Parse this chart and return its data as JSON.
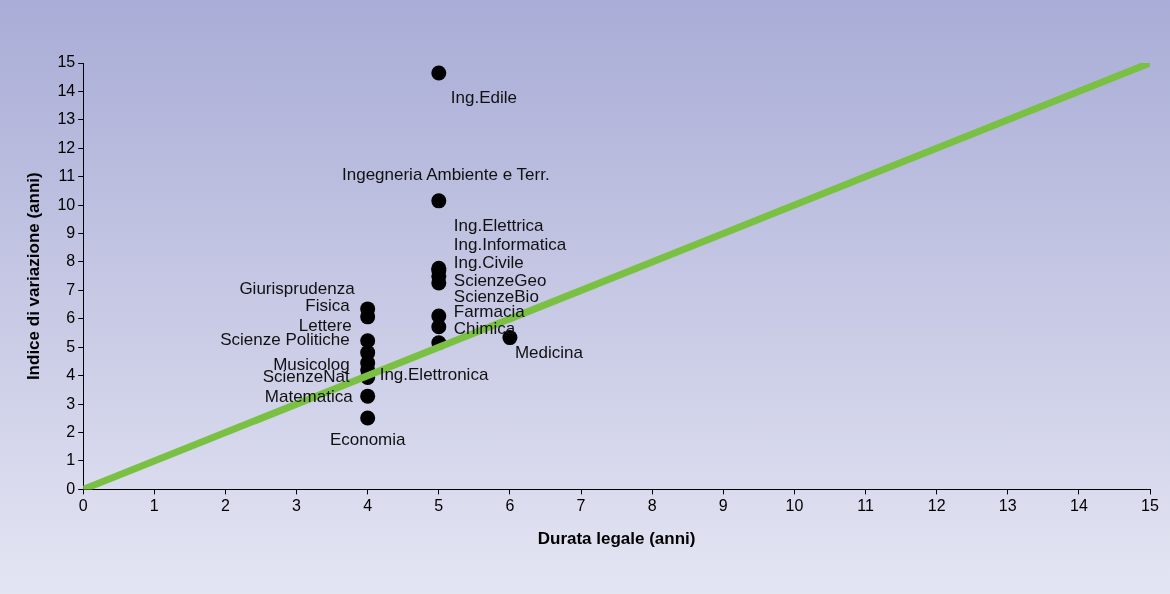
{
  "chart_data": {
    "type": "scatter",
    "xlabel": "Durata legale (anni)",
    "ylabel": "Indice di variazione (anni)",
    "xlim": [
      0,
      15
    ],
    "ylim": [
      0,
      15
    ],
    "xticks": [
      0,
      1,
      2,
      3,
      4,
      5,
      6,
      7,
      8,
      9,
      10,
      11,
      12,
      13,
      14,
      15
    ],
    "yticks": [
      0,
      1,
      2,
      3,
      4,
      5,
      6,
      7,
      8,
      9,
      10,
      11,
      12,
      13,
      14,
      15
    ],
    "grid": false,
    "legend": false,
    "marker": "circle",
    "series": [
      {
        "color": "#000000",
        "x": [
          5,
          5,
          5,
          5,
          5,
          5,
          5,
          5,
          5,
          6,
          4,
          4,
          4,
          4,
          4,
          4,
          4,
          4,
          4
        ],
        "values": [
          14.65,
          10.15,
          7.78,
          7.7,
          7.5,
          7.26,
          6.1,
          5.72,
          5.16,
          5.34,
          6.35,
          6.07,
          5.23,
          4.81,
          4.45,
          4.2,
          3.94,
          3.28,
          2.51
        ],
        "value_labels": [
          "Ing.Edile",
          "Ingegneria Ambiente e Terr.",
          "Ing.Elettrica",
          "Ing.Informatica",
          "Ing.Civile",
          "ScienzeGeo",
          "ScienzeBio",
          "Farmacia",
          "Chimica",
          "Medicina",
          "Giurisprudenza",
          "Fisica",
          "Lettere",
          "Scienze Politiche",
          "Musicolog",
          "Ing.Elettronica",
          "ScienzeNat",
          "Matematica",
          "Economia"
        ]
      },
      {
        "type": "line",
        "color": "#7ac143",
        "x": [
          0,
          15
        ],
        "values": [
          0,
          15
        ],
        "marker": "none"
      }
    ]
  }
}
